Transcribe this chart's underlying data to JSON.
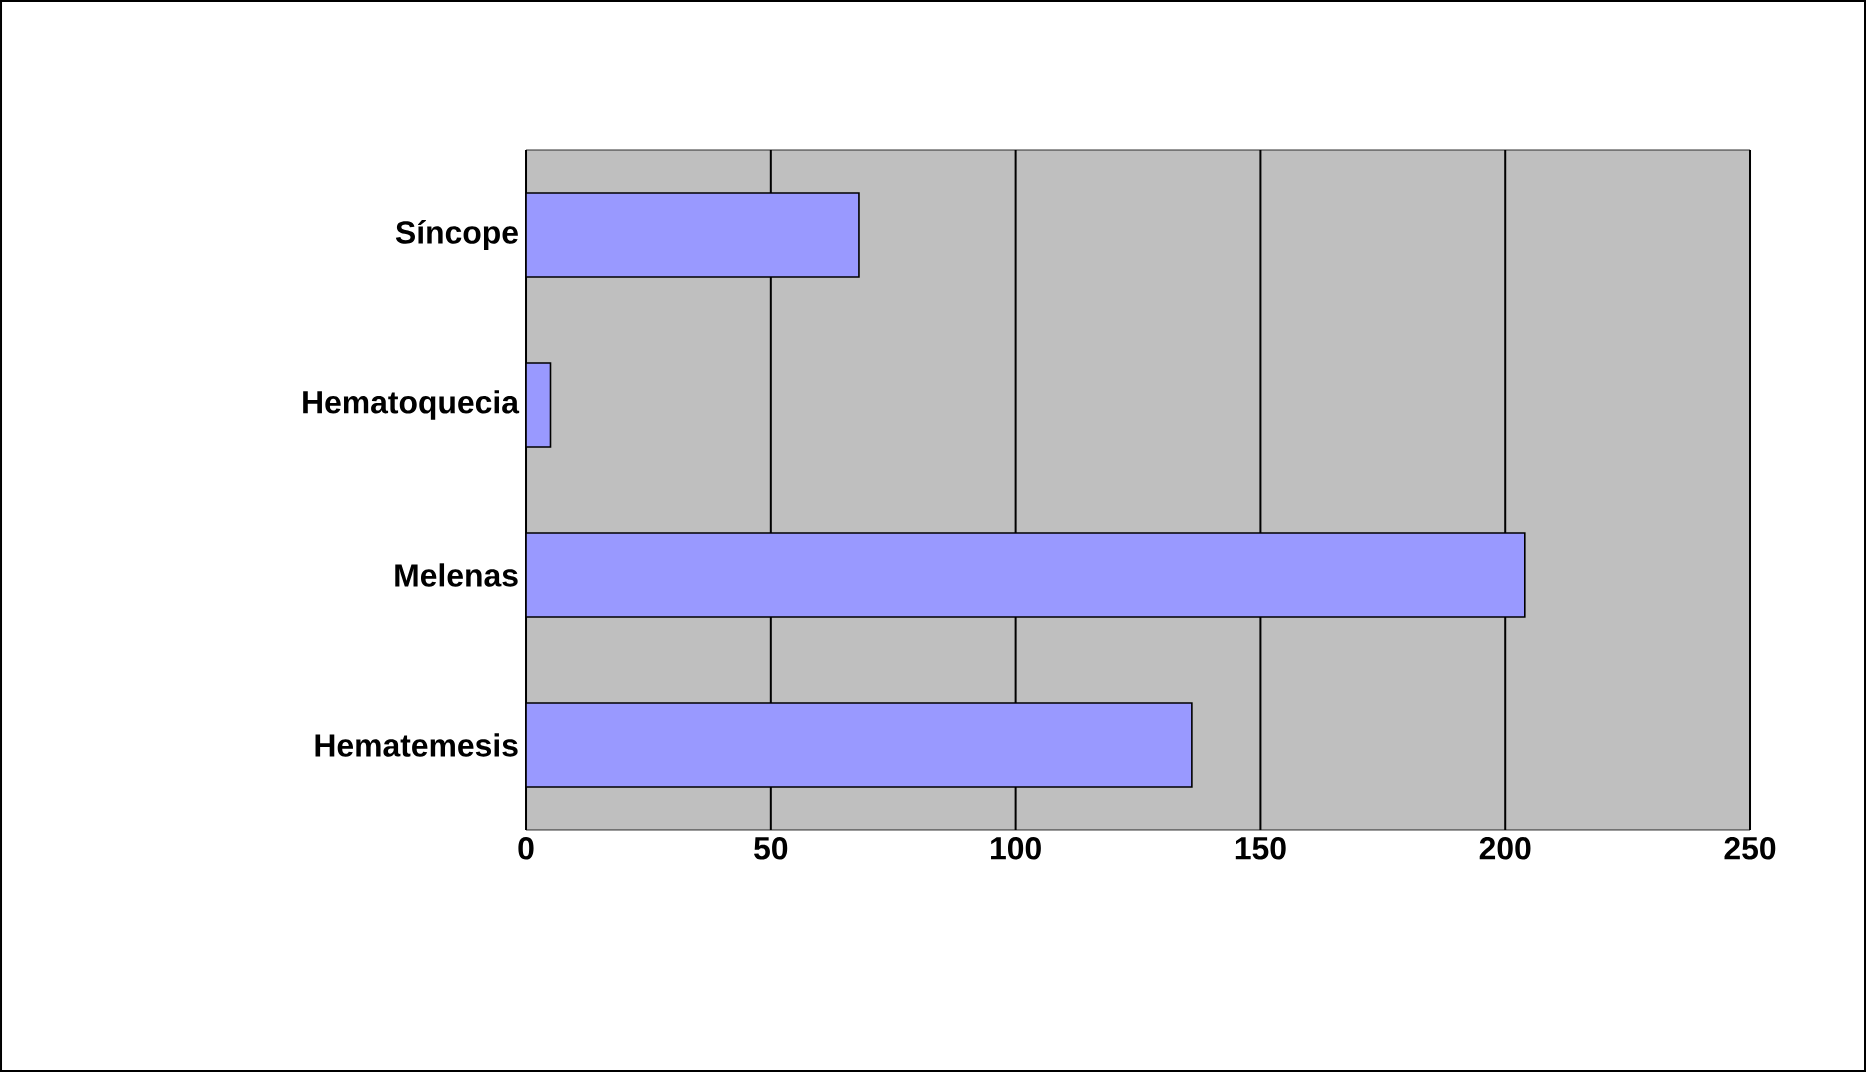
{
  "chart_data": {
    "type": "bar",
    "orientation": "horizontal",
    "categories": [
      "Síncope",
      "Hematoquecia",
      "Melenas",
      "Hematemesis"
    ],
    "values": [
      68,
      5,
      204,
      136
    ],
    "color": "#9999ff",
    "xlim": [
      0,
      250
    ],
    "xticks": [
      0,
      50,
      100,
      150,
      200,
      250
    ],
    "grid": "x"
  }
}
